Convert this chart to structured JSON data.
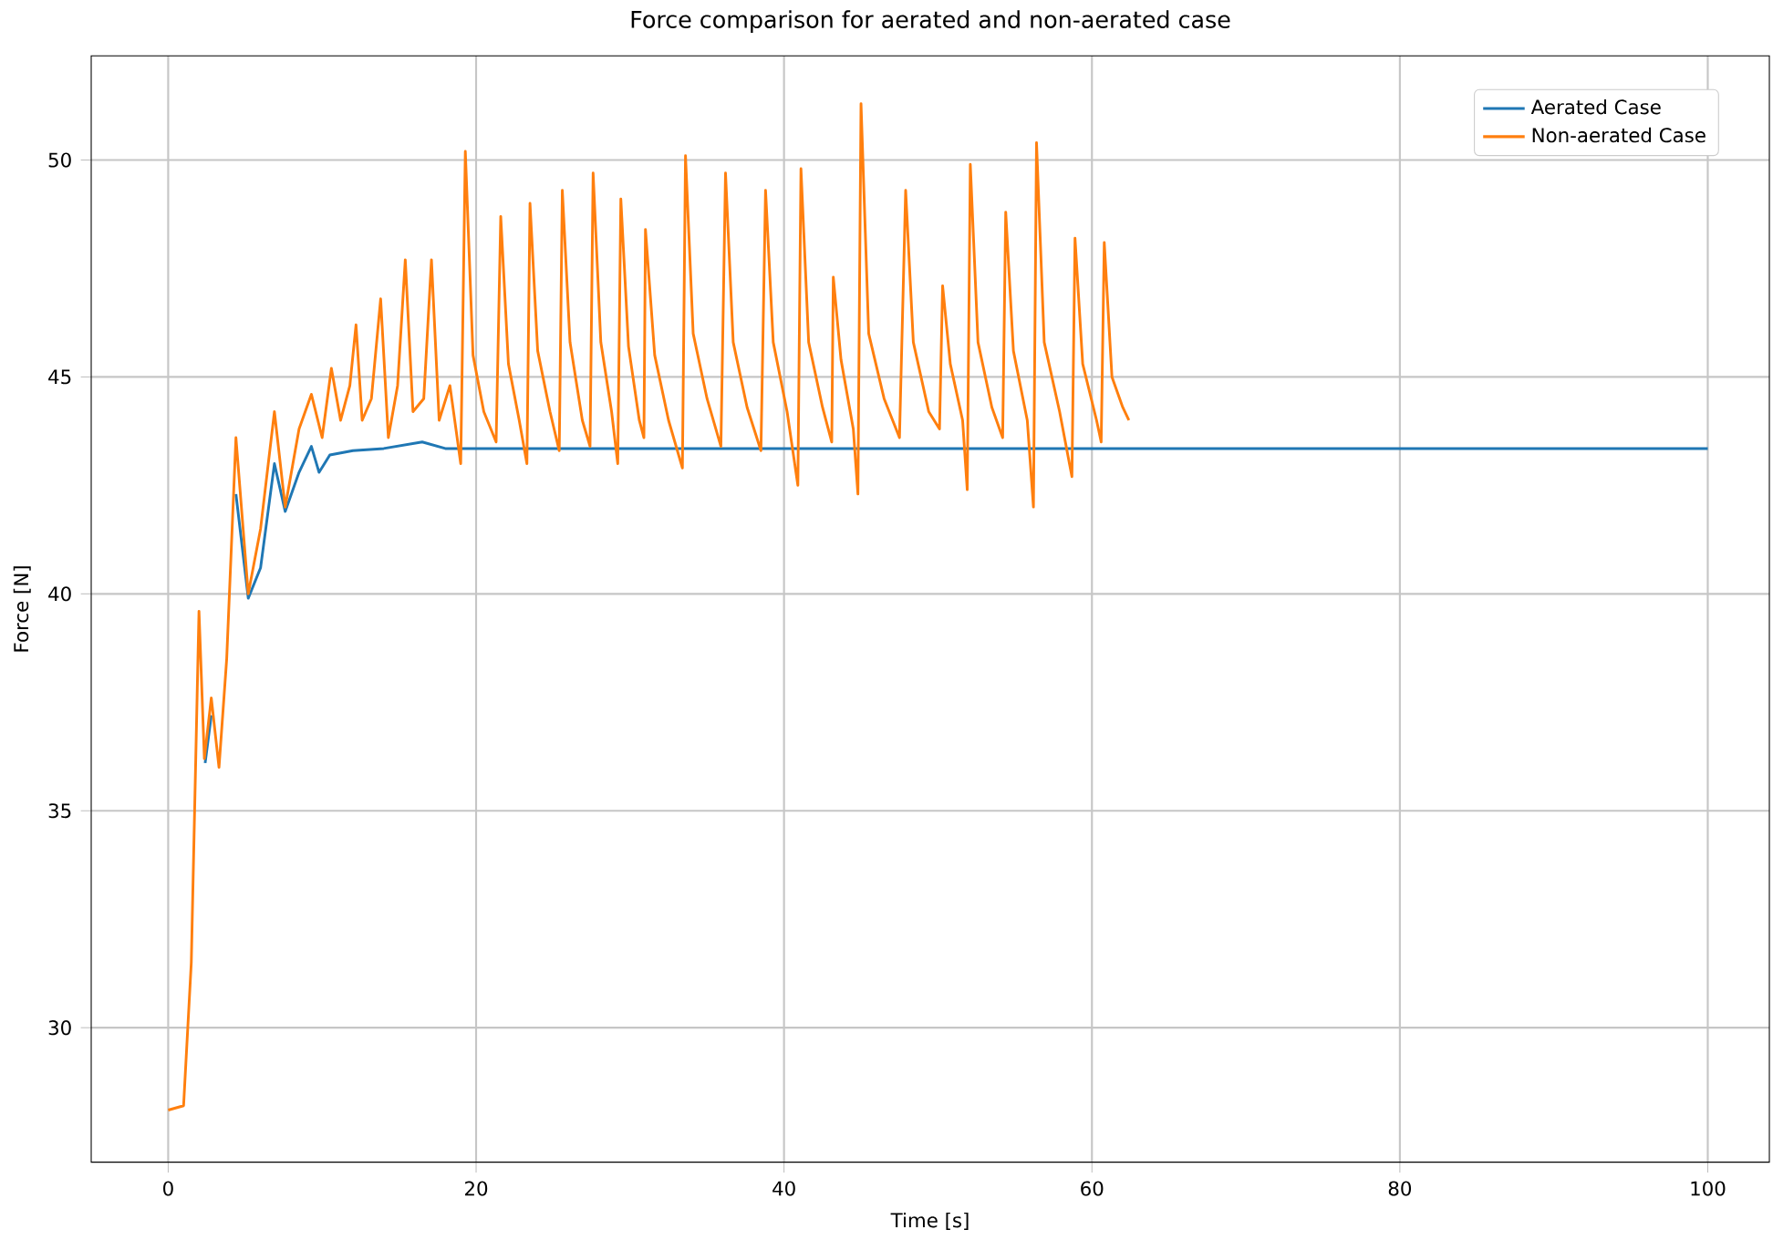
{
  "chart_data": {
    "type": "line",
    "title": "Force comparison for aerated and non-aerated case",
    "xlabel": "Time [s]",
    "ylabel": "Force [N]",
    "xlim": [
      -5,
      104
    ],
    "ylim": [
      26.9,
      52.4
    ],
    "xticks": [
      0,
      20,
      40,
      60,
      80,
      100
    ],
    "yticks": [
      30,
      35,
      40,
      45,
      50
    ],
    "grid": true,
    "legend": "top right",
    "line_style": "solid",
    "marker": "none",
    "series": [
      {
        "name": "Aerated Case",
        "color": "#1f77b4",
        "x": [
          2.4,
          2.8,
          3.3,
          3.8,
          4.4,
          5.2,
          6.0,
          6.9,
          7.6,
          8.5,
          9.3,
          9.8,
          10.5,
          12,
          14,
          16.5,
          18,
          20,
          30,
          40,
          50,
          60,
          70,
          80,
          90,
          100
        ],
        "values": [
          36.1,
          37.2,
          null,
          null,
          42.3,
          39.9,
          40.6,
          43.0,
          41.9,
          42.8,
          43.4,
          42.8,
          43.2,
          43.3,
          43.35,
          43.5,
          43.35,
          43.35,
          43.35,
          43.35,
          43.35,
          43.35,
          43.35,
          43.35,
          43.35,
          43.35
        ]
      },
      {
        "name": "Non-aerated Case",
        "color": "#ff7f0e",
        "x": [
          0,
          1,
          1.5,
          2.0,
          2.35,
          2.8,
          3.3,
          3.8,
          4.4,
          5.2,
          6.0,
          6.9,
          7.6,
          8.5,
          9.3,
          10,
          10.6,
          11.2,
          11.8,
          12.2,
          12.6,
          13.2,
          13.8,
          14.3,
          14.9,
          15.4,
          15.9,
          16.6,
          17.1,
          17.6,
          18.3,
          19.0,
          19.3,
          19.8,
          20.5,
          21.3,
          21.6,
          22.1,
          22.8,
          23.3,
          23.5,
          24,
          24.8,
          25.4,
          25.6,
          26.1,
          26.9,
          27.4,
          27.6,
          28.1,
          28.8,
          29.2,
          29.4,
          29.9,
          30.6,
          30.9,
          31.0,
          31.6,
          32.5,
          33.4,
          33.6,
          34.1,
          35.0,
          35.9,
          36.2,
          36.7,
          37.6,
          38.5,
          38.8,
          39.3,
          40.2,
          40.9,
          41.1,
          41.6,
          42.5,
          43.1,
          43.2,
          43.7,
          44.5,
          44.8,
          45.0,
          45.5,
          46.5,
          47.5,
          47.9,
          48.4,
          49.4,
          50.1,
          50.3,
          50.8,
          51.6,
          51.9,
          52.1,
          52.6,
          53.5,
          54.2,
          54.4,
          54.9,
          55.8,
          56.2,
          56.4,
          56.9,
          57.9,
          58.7,
          58.9,
          59.4,
          60.3,
          60.6,
          60.8,
          61.3,
          62.0,
          62.4
        ],
        "values": [
          28.1,
          28.2,
          31.5,
          39.6,
          36.2,
          37.6,
          36.0,
          38.5,
          43.6,
          40.0,
          41.5,
          44.2,
          42.0,
          43.8,
          44.6,
          43.6,
          45.2,
          44.0,
          44.8,
          46.2,
          44.0,
          44.5,
          46.8,
          43.6,
          44.8,
          47.7,
          44.2,
          44.5,
          47.7,
          44.0,
          44.8,
          43.0,
          50.2,
          45.5,
          44.2,
          43.5,
          48.7,
          45.3,
          44.0,
          43.0,
          49.0,
          45.6,
          44.2,
          43.3,
          49.3,
          45.8,
          44.0,
          43.4,
          49.7,
          45.8,
          44.2,
          43.0,
          49.1,
          45.7,
          44.0,
          43.6,
          48.4,
          45.5,
          44.0,
          42.9,
          50.1,
          46.0,
          44.5,
          43.4,
          49.7,
          45.8,
          44.3,
          43.3,
          49.3,
          45.8,
          44.2,
          42.5,
          49.8,
          45.8,
          44.3,
          43.5,
          47.3,
          45.4,
          43.8,
          42.3,
          51.3,
          46.0,
          44.5,
          43.6,
          49.3,
          45.8,
          44.2,
          43.8,
          47.1,
          45.3,
          44.0,
          42.4,
          49.9,
          45.8,
          44.3,
          43.6,
          48.8,
          45.6,
          44.0,
          42.0,
          50.4,
          45.8,
          44.2,
          42.7,
          48.2,
          45.3,
          44.0,
          43.5,
          48.1,
          45.0,
          44.3,
          44.0
        ]
      }
    ]
  }
}
